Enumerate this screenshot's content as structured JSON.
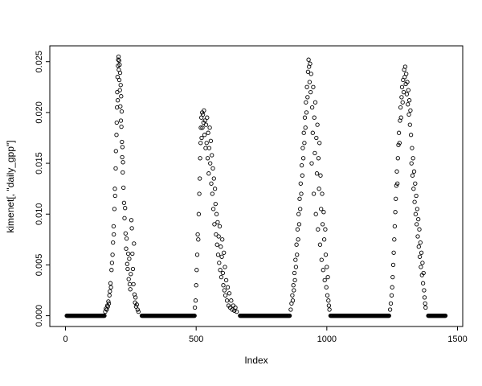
{
  "figure": {
    "background": "#ffffff",
    "foreground": "#000000"
  },
  "chart_data": {
    "type": "scatter",
    "title": "",
    "xlabel": "Index",
    "ylabel": "kimenet[, \"daily_gpp\"]",
    "marker": "open-circle",
    "grid": false,
    "legend": null,
    "xlim": [
      -60,
      1520
    ],
    "ylim": [
      -0.00106,
      0.02656
    ],
    "x_ticks": [
      0,
      500,
      1000,
      1500
    ],
    "x_tick_labels": [
      "0",
      "500",
      "1000",
      "1500"
    ],
    "y_ticks": [
      0.0,
      0.005,
      0.01,
      0.015,
      0.02,
      0.025
    ],
    "y_tick_labels": [
      "0.000",
      "0.005",
      "0.010",
      "0.015",
      "0.020",
      "0.025"
    ],
    "zero_runs": [
      [
        5,
        150
      ],
      [
        292,
        494
      ],
      [
        668,
        858
      ],
      [
        1014,
        1238
      ],
      [
        1388,
        1455
      ]
    ],
    "zero_run_step": 2,
    "points": [
      [
        152,
        0.0004
      ],
      [
        155,
        0.0007
      ],
      [
        158,
        0.0006
      ],
      [
        160,
        0.001
      ],
      [
        162,
        0.0009
      ],
      [
        164,
        0.0014
      ],
      [
        166,
        0.0012
      ],
      [
        168,
        0.002
      ],
      [
        170,
        0.0024
      ],
      [
        172,
        0.0032
      ],
      [
        174,
        0.0028
      ],
      [
        176,
        0.0045
      ],
      [
        178,
        0.0052
      ],
      [
        180,
        0.006
      ],
      [
        182,
        0.0072
      ],
      [
        184,
        0.0088
      ],
      [
        185,
        0.008
      ],
      [
        187,
        0.0105
      ],
      [
        189,
        0.0125
      ],
      [
        190,
        0.0118
      ],
      [
        192,
        0.0145
      ],
      [
        193,
        0.0162
      ],
      [
        195,
        0.0178
      ],
      [
        196,
        0.019
      ],
      [
        197,
        0.0205
      ],
      [
        198,
        0.022
      ],
      [
        199,
        0.0235
      ],
      [
        200,
        0.0212
      ],
      [
        201,
        0.0246
      ],
      [
        202,
        0.0252
      ],
      [
        203,
        0.0255
      ],
      [
        204,
        0.0242
      ],
      [
        205,
        0.0251
      ],
      [
        206,
        0.0232
      ],
      [
        207,
        0.0247
      ],
      [
        208,
        0.0222
      ],
      [
        209,
        0.0239
      ],
      [
        210,
        0.0206
      ],
      [
        211,
        0.0227
      ],
      [
        212,
        0.0192
      ],
      [
        213,
        0.0216
      ],
      [
        214,
        0.0186
      ],
      [
        215,
        0.0201
      ],
      [
        216,
        0.0171
      ],
      [
        217,
        0.0156
      ],
      [
        218,
        0.0166
      ],
      [
        219,
        0.0141
      ],
      [
        220,
        0.0151
      ],
      [
        222,
        0.0126
      ],
      [
        224,
        0.0111
      ],
      [
        226,
        0.0096
      ],
      [
        228,
        0.0106
      ],
      [
        230,
        0.0081
      ],
      [
        232,
        0.0066
      ],
      [
        234,
        0.0076
      ],
      [
        236,
        0.0051
      ],
      [
        238,
        0.0046
      ],
      [
        240,
        0.0061
      ],
      [
        242,
        0.0036
      ],
      [
        244,
        0.0056
      ],
      [
        246,
        0.0031
      ],
      [
        248,
        0.0026
      ],
      [
        250,
        0.0041
      ],
      [
        252,
        0.0094
      ],
      [
        254,
        0.0086
      ],
      [
        256,
        0.0061
      ],
      [
        258,
        0.0046
      ],
      [
        260,
        0.0031
      ],
      [
        262,
        0.0071
      ],
      [
        264,
        0.0021
      ],
      [
        266,
        0.0013
      ],
      [
        268,
        0.0018
      ],
      [
        270,
        0.0009
      ],
      [
        273,
        0.0011
      ],
      [
        276,
        0.0006
      ],
      [
        279,
        0.0004
      ],
      [
        495,
        0.0008
      ],
      [
        498,
        0.0015
      ],
      [
        500,
        0.003
      ],
      [
        502,
        0.0045
      ],
      [
        504,
        0.006
      ],
      [
        506,
        0.008
      ],
      [
        508,
        0.0075
      ],
      [
        510,
        0.01
      ],
      [
        512,
        0.012
      ],
      [
        514,
        0.0135
      ],
      [
        515,
        0.0155
      ],
      [
        517,
        0.017
      ],
      [
        518,
        0.0185
      ],
      [
        520,
        0.0195
      ],
      [
        521,
        0.0175
      ],
      [
        523,
        0.02
      ],
      [
        524,
        0.0185
      ],
      [
        526,
        0.0198
      ],
      [
        528,
        0.019
      ],
      [
        530,
        0.0202
      ],
      [
        532,
        0.0178
      ],
      [
        534,
        0.0192
      ],
      [
        536,
        0.0165
      ],
      [
        538,
        0.0188
      ],
      [
        540,
        0.017
      ],
      [
        542,
        0.0195
      ],
      [
        544,
        0.0155
      ],
      [
        546,
        0.018
      ],
      [
        548,
        0.014
      ],
      [
        550,
        0.0165
      ],
      [
        552,
        0.0185
      ],
      [
        554,
        0.015
      ],
      [
        556,
        0.0172
      ],
      [
        558,
        0.013
      ],
      [
        560,
        0.0158
      ],
      [
        562,
        0.012
      ],
      [
        564,
        0.0145
      ],
      [
        566,
        0.0105
      ],
      [
        568,
        0.0135
      ],
      [
        570,
        0.009
      ],
      [
        572,
        0.0125
      ],
      [
        574,
        0.011
      ],
      [
        576,
        0.008
      ],
      [
        578,
        0.01
      ],
      [
        580,
        0.007
      ],
      [
        582,
        0.0092
      ],
      [
        584,
        0.006
      ],
      [
        586,
        0.0078
      ],
      [
        588,
        0.0052
      ],
      [
        590,
        0.0088
      ],
      [
        592,
        0.0045
      ],
      [
        594,
        0.0068
      ],
      [
        596,
        0.0038
      ],
      [
        598,
        0.0058
      ],
      [
        600,
        0.0075
      ],
      [
        602,
        0.0042
      ],
      [
        604,
        0.003
      ],
      [
        606,
        0.0062
      ],
      [
        608,
        0.0025
      ],
      [
        610,
        0.0048
      ],
      [
        612,
        0.002
      ],
      [
        615,
        0.0035
      ],
      [
        618,
        0.0015
      ],
      [
        621,
        0.0028
      ],
      [
        624,
        0.001
      ],
      [
        627,
        0.0022
      ],
      [
        630,
        0.0008
      ],
      [
        634,
        0.0015
      ],
      [
        638,
        0.0006
      ],
      [
        642,
        0.001
      ],
      [
        646,
        0.0005
      ],
      [
        650,
        0.0008
      ],
      [
        655,
        0.0004
      ],
      [
        862,
        0.0006
      ],
      [
        865,
        0.0012
      ],
      [
        868,
        0.002
      ],
      [
        870,
        0.0015
      ],
      [
        872,
        0.003
      ],
      [
        874,
        0.0025
      ],
      [
        876,
        0.0042
      ],
      [
        878,
        0.0035
      ],
      [
        880,
        0.0055
      ],
      [
        882,
        0.0048
      ],
      [
        884,
        0.007
      ],
      [
        886,
        0.006
      ],
      [
        888,
        0.0085
      ],
      [
        890,
        0.0075
      ],
      [
        892,
        0.01
      ],
      [
        894,
        0.009
      ],
      [
        896,
        0.0115
      ],
      [
        898,
        0.0105
      ],
      [
        900,
        0.013
      ],
      [
        902,
        0.012
      ],
      [
        904,
        0.0148
      ],
      [
        906,
        0.0138
      ],
      [
        908,
        0.0165
      ],
      [
        910,
        0.0155
      ],
      [
        912,
        0.018
      ],
      [
        914,
        0.017
      ],
      [
        916,
        0.0195
      ],
      [
        918,
        0.0185
      ],
      [
        920,
        0.021
      ],
      [
        922,
        0.02
      ],
      [
        924,
        0.0225
      ],
      [
        926,
        0.0215
      ],
      [
        928,
        0.024
      ],
      [
        930,
        0.0252
      ],
      [
        932,
        0.0245
      ],
      [
        934,
        0.023
      ],
      [
        936,
        0.0248
      ],
      [
        938,
        0.022
      ],
      [
        940,
        0.0238
      ],
      [
        942,
        0.015
      ],
      [
        944,
        0.0205
      ],
      [
        946,
        0.018
      ],
      [
        948,
        0.0225
      ],
      [
        950,
        0.012
      ],
      [
        952,
        0.0195
      ],
      [
        954,
        0.016
      ],
      [
        956,
        0.021
      ],
      [
        958,
        0.01
      ],
      [
        960,
        0.0175
      ],
      [
        962,
        0.014
      ],
      [
        964,
        0.0188
      ],
      [
        966,
        0.0085
      ],
      [
        968,
        0.0155
      ],
      [
        970,
        0.0125
      ],
      [
        972,
        0.017
      ],
      [
        974,
        0.007
      ],
      [
        976,
        0.0138
      ],
      [
        978,
        0.0105
      ],
      [
        980,
        0.0055
      ],
      [
        982,
        0.012
      ],
      [
        984,
        0.009
      ],
      [
        986,
        0.0045
      ],
      [
        988,
        0.0102
      ],
      [
        990,
        0.0075
      ],
      [
        992,
        0.0035
      ],
      [
        994,
        0.0085
      ],
      [
        996,
        0.006
      ],
      [
        998,
        0.0028
      ],
      [
        1000,
        0.0048
      ],
      [
        1002,
        0.002
      ],
      [
        1004,
        0.0038
      ],
      [
        1006,
        0.0015
      ],
      [
        1008,
        0.001
      ],
      [
        1010,
        0.0006
      ],
      [
        1242,
        0.0006
      ],
      [
        1245,
        0.0012
      ],
      [
        1248,
        0.002
      ],
      [
        1250,
        0.0028
      ],
      [
        1252,
        0.0038
      ],
      [
        1254,
        0.005
      ],
      [
        1256,
        0.0062
      ],
      [
        1258,
        0.0075
      ],
      [
        1260,
        0.0088
      ],
      [
        1262,
        0.0102
      ],
      [
        1264,
        0.0115
      ],
      [
        1266,
        0.0128
      ],
      [
        1268,
        0.0142
      ],
      [
        1270,
        0.013
      ],
      [
        1272,
        0.0155
      ],
      [
        1274,
        0.0168
      ],
      [
        1276,
        0.018
      ],
      [
        1278,
        0.017
      ],
      [
        1280,
        0.0192
      ],
      [
        1282,
        0.0205
      ],
      [
        1284,
        0.0195
      ],
      [
        1286,
        0.0215
      ],
      [
        1288,
        0.0225
      ],
      [
        1290,
        0.021
      ],
      [
        1292,
        0.0232
      ],
      [
        1294,
        0.022
      ],
      [
        1296,
        0.0242
      ],
      [
        1298,
        0.0235
      ],
      [
        1300,
        0.0245
      ],
      [
        1302,
        0.0228
      ],
      [
        1304,
        0.0238
      ],
      [
        1306,
        0.0218
      ],
      [
        1308,
        0.023
      ],
      [
        1310,
        0.0208
      ],
      [
        1312,
        0.0222
      ],
      [
        1314,
        0.0198
      ],
      [
        1316,
        0.0212
      ],
      [
        1318,
        0.0188
      ],
      [
        1320,
        0.0202
      ],
      [
        1322,
        0.0178
      ],
      [
        1324,
        0.015
      ],
      [
        1326,
        0.0165
      ],
      [
        1328,
        0.0138
      ],
      [
        1330,
        0.0155
      ],
      [
        1332,
        0.0125
      ],
      [
        1334,
        0.0142
      ],
      [
        1336,
        0.0112
      ],
      [
        1338,
        0.013
      ],
      [
        1340,
        0.01
      ],
      [
        1342,
        0.0118
      ],
      [
        1344,
        0.009
      ],
      [
        1346,
        0.0105
      ],
      [
        1348,
        0.0078
      ],
      [
        1350,
        0.0095
      ],
      [
        1352,
        0.0068
      ],
      [
        1354,
        0.0085
      ],
      [
        1356,
        0.0058
      ],
      [
        1358,
        0.0072
      ],
      [
        1360,
        0.0048
      ],
      [
        1362,
        0.0062
      ],
      [
        1364,
        0.004
      ],
      [
        1366,
        0.0052
      ],
      [
        1368,
        0.0032
      ],
      [
        1370,
        0.0042
      ],
      [
        1372,
        0.0025
      ],
      [
        1374,
        0.0018
      ],
      [
        1376,
        0.0012
      ],
      [
        1378,
        0.0008
      ]
    ]
  }
}
